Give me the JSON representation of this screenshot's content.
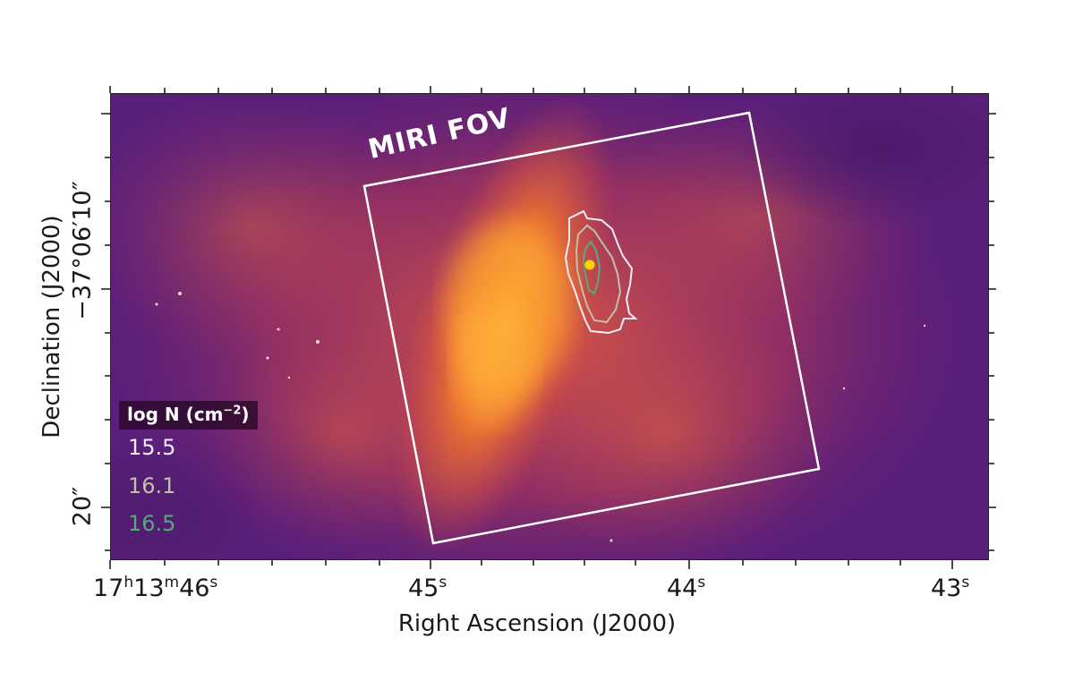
{
  "image": {
    "x_axis_title": "Right Ascension (J2000)",
    "y_axis_title": "Declination (J2000)",
    "x_tick_labels": [
      {
        "h": "17",
        "hu": "h",
        "m": "13",
        "mu": "m",
        "s": "46",
        "su": "s"
      },
      {
        "s": "45",
        "su": "s"
      },
      {
        "s": "44",
        "su": "s"
      },
      {
        "s": "43",
        "su": "s"
      }
    ],
    "y_tick_labels": [
      "−37°06′10″",
      "20″"
    ],
    "fov_label": "MIRI FOV",
    "legend": {
      "title": "log N (cm",
      "title_exp": "−2",
      "title_close": ")",
      "items": [
        {
          "value": "15.5",
          "color": "#f4ecf6"
        },
        {
          "value": "16.1",
          "color": "#c3c0a8"
        },
        {
          "value": "16.5",
          "color": "#58a87a"
        }
      ]
    },
    "colors": {
      "nebula_core": "#ff9a24",
      "nebula_mid": "#e0543f",
      "background": "#5a1f7a",
      "fov_box": "#ffffff",
      "central_source": "#ffd400"
    },
    "colormap": "inferno-like (purple to orange)"
  }
}
